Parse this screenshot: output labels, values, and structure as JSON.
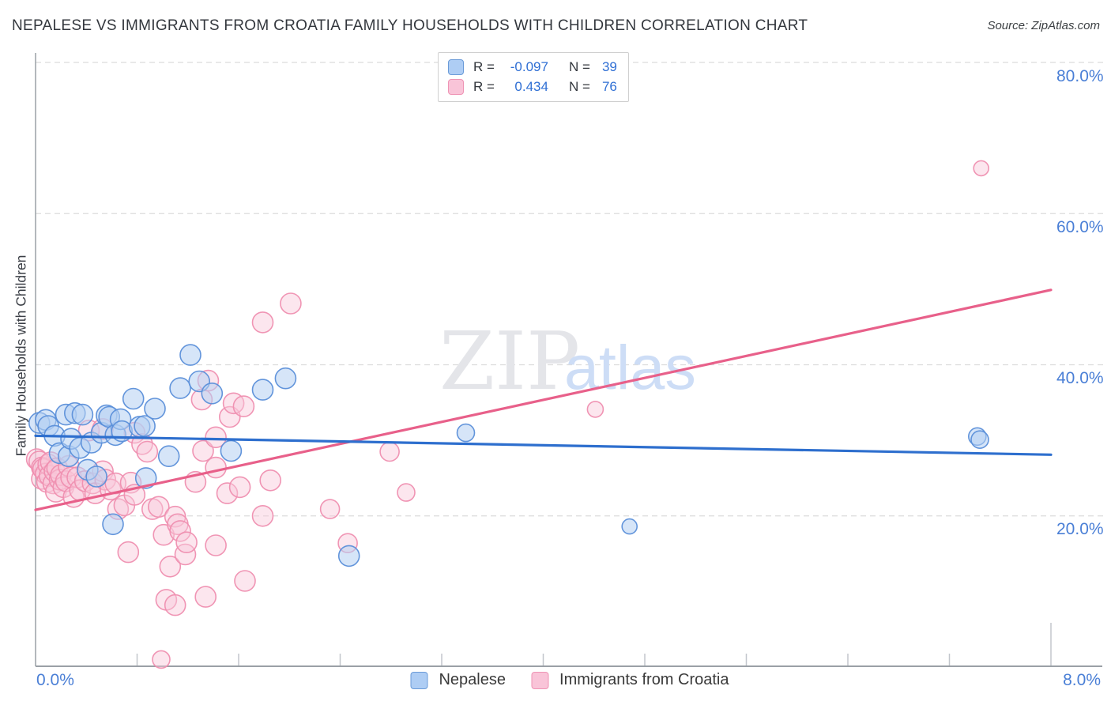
{
  "title": "NEPALESE VS IMMIGRANTS FROM CROATIA FAMILY HOUSEHOLDS WITH CHILDREN CORRELATION CHART",
  "source": "Source: ZipAtlas.com",
  "watermark": {
    "zip": "ZIP",
    "atlas": "atlas"
  },
  "stats_legend": {
    "rows": [
      {
        "series": "Nepalese",
        "r_label": "R =",
        "r_value": "-0.097",
        "n_label": "N =",
        "n_value": "39"
      },
      {
        "series": "Immigrants from Croatia",
        "r_label": "R =",
        "r_value": "0.434",
        "n_label": "N =",
        "n_value": "76"
      }
    ]
  },
  "x_axis": {
    "min_label": "0.0%",
    "max_label": "8.0%"
  },
  "y_axis": {
    "label": "Family Households with Children",
    "tick_labels": [
      "80.0%",
      "60.0%",
      "40.0%",
      "20.0%"
    ]
  },
  "series_legend": {
    "nepalese": "Nepalese",
    "croatia": "Immigrants from Croatia"
  },
  "colors": {
    "blue_fill": "#b5d0f2",
    "blue_stroke": "#5b8fd9",
    "blue_line": "#2e6fce",
    "pink_fill": "#f8c8da",
    "pink_stroke": "#ef8fb0",
    "pink_line": "#e8608a",
    "grid": "#dcdcdc",
    "axis": "#9aa0a6",
    "tick": "#c2c6cc",
    "tick_label": "#4a7fd6",
    "value_blue": "#2f6fd4",
    "watermark_zip": "#e4e5e9",
    "watermark_atlas": "#cdddf6"
  },
  "chart_data": {
    "type": "scatter",
    "x_range": [
      0,
      8
    ],
    "y_range": [
      0,
      85
    ],
    "x_unit": "percent",
    "y_unit": "percent",
    "grid": "dashed-horizontal",
    "gridlines_y": [
      20,
      40,
      60,
      80
    ],
    "x_tick_interval": 0.8,
    "legend_position": "bottom-center",
    "series": [
      {
        "name": "Nepalese",
        "R": -0.097,
        "N": 39,
        "points": [
          [
            0.03,
            32.3
          ],
          [
            0.08,
            32.7
          ],
          [
            0.1,
            31.9
          ],
          [
            0.15,
            30.6
          ],
          [
            0.19,
            28.3
          ],
          [
            0.24,
            33.4
          ],
          [
            0.26,
            27.9
          ],
          [
            0.28,
            30.2
          ],
          [
            0.31,
            33.6
          ],
          [
            0.35,
            29.0
          ],
          [
            0.37,
            33.4
          ],
          [
            0.41,
            26.1
          ],
          [
            0.44,
            29.7
          ],
          [
            0.48,
            25.2
          ],
          [
            0.52,
            31.0
          ],
          [
            0.56,
            33.3
          ],
          [
            0.58,
            33.1
          ],
          [
            0.61,
            18.9
          ],
          [
            0.63,
            30.7
          ],
          [
            0.67,
            32.8
          ],
          [
            0.68,
            31.2
          ],
          [
            0.77,
            35.5
          ],
          [
            0.82,
            31.8
          ],
          [
            0.86,
            31.9
          ],
          [
            0.87,
            25.0
          ],
          [
            0.94,
            34.2
          ],
          [
            1.05,
            27.9
          ],
          [
            1.14,
            36.9
          ],
          [
            1.22,
            41.3
          ],
          [
            1.29,
            37.8
          ],
          [
            1.39,
            36.2
          ],
          [
            1.54,
            28.6
          ],
          [
            1.79,
            36.7
          ],
          [
            1.97,
            38.2
          ],
          [
            2.47,
            14.7
          ],
          [
            3.39,
            31.0,
            11
          ],
          [
            4.68,
            18.6,
            9.5
          ],
          [
            7.42,
            30.5,
            11
          ],
          [
            7.44,
            30.1,
            11
          ]
        ]
      },
      {
        "name": "Immigrants from Croatia",
        "R": 0.434,
        "N": 76,
        "points": [
          [
            0.01,
            27.5
          ],
          [
            0.03,
            27.2
          ],
          [
            0.05,
            26.4
          ],
          [
            0.05,
            24.9
          ],
          [
            0.06,
            26.2
          ],
          [
            0.08,
            25.6
          ],
          [
            0.09,
            24.5
          ],
          [
            0.1,
            26.8
          ],
          [
            0.11,
            25.3
          ],
          [
            0.12,
            27.1
          ],
          [
            0.14,
            24.3
          ],
          [
            0.15,
            25.9
          ],
          [
            0.16,
            23.2
          ],
          [
            0.17,
            26.3
          ],
          [
            0.19,
            24.8
          ],
          [
            0.2,
            25.4
          ],
          [
            0.22,
            23.8
          ],
          [
            0.24,
            24.6
          ],
          [
            0.26,
            26.6
          ],
          [
            0.28,
            25.1
          ],
          [
            0.3,
            22.5
          ],
          [
            0.33,
            25.1
          ],
          [
            0.35,
            23.4
          ],
          [
            0.39,
            24.6
          ],
          [
            0.42,
            31.3
          ],
          [
            0.45,
            24.3
          ],
          [
            0.47,
            23.0
          ],
          [
            0.53,
            31.5
          ],
          [
            0.53,
            25.9
          ],
          [
            0.55,
            24.8
          ],
          [
            0.59,
            23.5
          ],
          [
            0.63,
            24.3
          ],
          [
            0.65,
            20.9
          ],
          [
            0.7,
            21.4
          ],
          [
            0.73,
            15.2
          ],
          [
            0.75,
            24.4
          ],
          [
            0.78,
            31.0
          ],
          [
            0.78,
            22.8
          ],
          [
            0.84,
            29.5
          ],
          [
            0.88,
            28.5
          ],
          [
            0.92,
            20.9
          ],
          [
            0.97,
            21.2
          ],
          [
            0.99,
            1.0,
            11
          ],
          [
            1.01,
            17.5
          ],
          [
            1.03,
            8.9
          ],
          [
            1.06,
            13.3
          ],
          [
            1.1,
            8.2
          ],
          [
            1.1,
            19.9
          ],
          [
            1.12,
            18.9
          ],
          [
            1.14,
            18.0
          ],
          [
            1.18,
            14.9
          ],
          [
            1.19,
            16.5
          ],
          [
            1.34,
            9.3
          ],
          [
            1.42,
            16.1
          ],
          [
            1.65,
            11.4
          ],
          [
            1.26,
            24.5
          ],
          [
            1.31,
            35.4
          ],
          [
            1.32,
            28.6
          ],
          [
            1.36,
            37.9
          ],
          [
            1.42,
            30.4
          ],
          [
            1.42,
            26.4
          ],
          [
            1.51,
            23.0
          ],
          [
            1.53,
            33.1
          ],
          [
            1.56,
            34.9
          ],
          [
            1.61,
            23.8
          ],
          [
            1.64,
            34.5
          ],
          [
            1.79,
            20.0
          ],
          [
            1.85,
            24.7
          ],
          [
            1.79,
            45.6
          ],
          [
            2.01,
            48.1
          ],
          [
            2.32,
            20.9,
            12
          ],
          [
            2.46,
            16.4,
            12
          ],
          [
            2.79,
            28.5,
            12
          ],
          [
            2.92,
            23.1,
            11
          ],
          [
            4.41,
            34.1,
            10
          ],
          [
            7.45,
            66.0,
            9.5
          ]
        ]
      }
    ],
    "trend_lines": [
      {
        "series": "Nepalese",
        "x1": 0,
        "y1": 30.6,
        "x2": 8,
        "y2": 28.1
      },
      {
        "series": "Immigrants from Croatia",
        "x1": 0,
        "y1": 20.8,
        "x2": 8,
        "y2": 49.9
      }
    ]
  }
}
